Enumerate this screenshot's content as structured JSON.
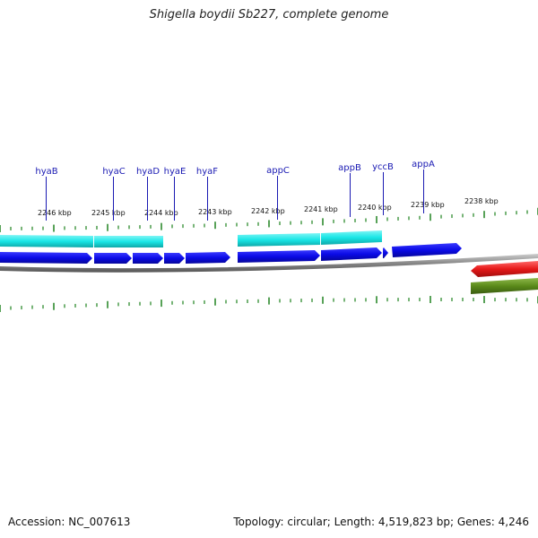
{
  "title": "Shigella boydii Sb227, complete genome",
  "footer": {
    "accession": "Accession: NC_007613",
    "summary": "Topology: circular; Length: 4,519,823 bp; Genes: 4,246"
  },
  "colors": {
    "cds_forward": "#0a0ae6",
    "feature_cyan": "#19e6e6",
    "feature_red": "#e61919",
    "feature_green": "#5a8a1a",
    "backbone": "#888888",
    "tick": "#2e8b2e",
    "label": "#1a1ab3"
  },
  "tick_labels": [
    "2246 kbp",
    "2245 kbp",
    "2244 kbp",
    "2243 kbp",
    "2242 kbp",
    "2241 kbp",
    "2240 kbp",
    "2239 kbp",
    "2238 kbp"
  ],
  "gene_labels": [
    "hyaB",
    "hyaC",
    "hyaD",
    "hyaE",
    "hyaF",
    "appC",
    "appB",
    "yccB",
    "appA"
  ]
}
